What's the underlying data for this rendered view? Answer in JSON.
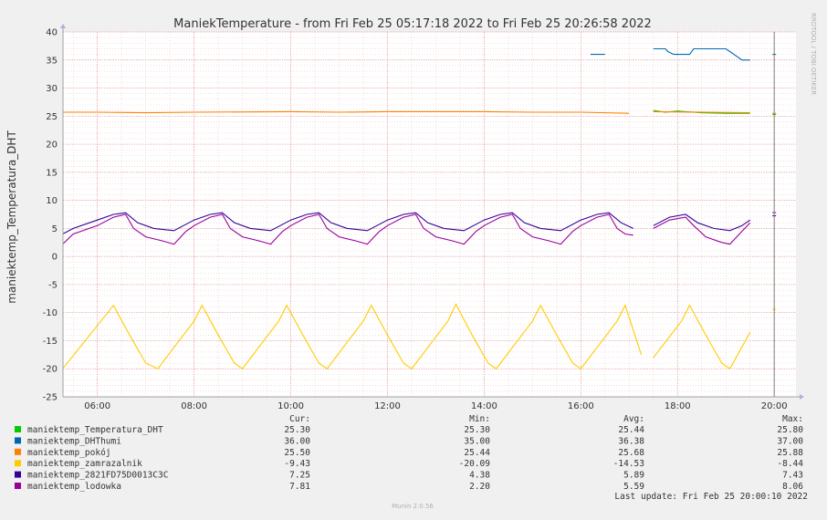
{
  "chart_data": {
    "type": "line",
    "title": "ManiekTemperature - from Fri Feb 25 05:17:18 2022 to Fri Feb 25 20:26:58 2022",
    "ylabel": "maniektemp_Temperatura_DHT",
    "xlabel": "",
    "ylim": [
      -25,
      40
    ],
    "xlim": [
      "05:17",
      "20:27"
    ],
    "y_ticks": [
      "40",
      "35",
      "30",
      "25",
      "20",
      "15",
      "10",
      "5",
      "0",
      "-5",
      "-10",
      "-15",
      "-20",
      "-25"
    ],
    "x_ticks": [
      "06:00",
      "08:00",
      "10:00",
      "12:00",
      "14:00",
      "16:00",
      "18:00",
      "20:00"
    ],
    "grid": true,
    "legend_position": "bottom",
    "series": [
      {
        "name": "maniektemp_Temperatura_DHT",
        "color": "#00cc00",
        "segments": [
          [
            [
              "17:30",
              26.0
            ],
            [
              "17:45",
              25.7
            ],
            [
              "18:00",
              25.9
            ],
            [
              "18:10",
              25.8
            ],
            [
              "18:30",
              25.6
            ],
            [
              "19:00",
              25.5
            ],
            [
              "19:30",
              25.5
            ]
          ],
          [
            [
              "20:00",
              25.3
            ]
          ]
        ]
      },
      {
        "name": "maniektemp_DHThumi",
        "color": "#0066b3",
        "segments": [
          [
            [
              "16:12",
              36.0
            ],
            [
              "16:30",
              36.0
            ]
          ],
          [
            [
              "17:30",
              37.0
            ],
            [
              "17:45",
              37.0
            ],
            [
              "17:48",
              36.5
            ],
            [
              "17:55",
              36.0
            ],
            [
              "18:15",
              36.0
            ],
            [
              "18:20",
              37.0
            ],
            [
              "19:00",
              37.0
            ],
            [
              "19:05",
              36.5
            ],
            [
              "19:15",
              35.5
            ],
            [
              "19:20",
              35.0
            ],
            [
              "19:30",
              35.0
            ]
          ],
          [
            [
              "20:00",
              36.0
            ]
          ]
        ]
      },
      {
        "name": "maniektemp_pokój",
        "color": "#ff8000",
        "segments": [
          [
            [
              "05:17",
              25.7
            ],
            [
              "06:00",
              25.7
            ],
            [
              "07:00",
              25.6
            ],
            [
              "08:00",
              25.7
            ],
            [
              "10:00",
              25.8
            ],
            [
              "11:00",
              25.7
            ],
            [
              "12:00",
              25.8
            ],
            [
              "14:00",
              25.8
            ],
            [
              "15:00",
              25.7
            ],
            [
              "16:00",
              25.7
            ],
            [
              "17:00",
              25.5
            ]
          ],
          [
            [
              "17:30",
              25.8
            ],
            [
              "19:30",
              25.6
            ]
          ],
          [
            [
              "20:00",
              25.5
            ]
          ]
        ]
      },
      {
        "name": "maniektemp_zamrazalnik",
        "color": "#ffcc00",
        "segments": [
          [
            [
              "05:17",
              -20.0
            ],
            [
              "06:10",
              -10.5
            ],
            [
              "06:20",
              -8.7
            ],
            [
              "06:40",
              -14.0
            ],
            [
              "07:00",
              -19.0
            ],
            [
              "07:15",
              -20.0
            ],
            [
              "08:00",
              -11.5
            ],
            [
              "08:10",
              -8.7
            ],
            [
              "08:30",
              -14.0
            ],
            [
              "08:50",
              -19.0
            ],
            [
              "09:00",
              -20.0
            ],
            [
              "09:45",
              -11.5
            ],
            [
              "09:55",
              -8.7
            ],
            [
              "10:15",
              -14.0
            ],
            [
              "10:35",
              -19.0
            ],
            [
              "10:45",
              -20.0
            ],
            [
              "11:30",
              -11.5
            ],
            [
              "11:40",
              -8.7
            ],
            [
              "12:00",
              -14.0
            ],
            [
              "12:20",
              -19.0
            ],
            [
              "12:30",
              -20.0
            ],
            [
              "13:15",
              -11.5
            ],
            [
              "13:25",
              -8.5
            ],
            [
              "13:45",
              -14.0
            ],
            [
              "14:05",
              -19.0
            ],
            [
              "14:15",
              -20.0
            ],
            [
              "15:00",
              -11.5
            ],
            [
              "15:10",
              -8.7
            ],
            [
              "15:30",
              -14.0
            ],
            [
              "15:50",
              -19.0
            ],
            [
              "16:00",
              -20.0
            ],
            [
              "16:45",
              -11.5
            ],
            [
              "16:55",
              -8.7
            ],
            [
              "17:15",
              -17.5
            ]
          ],
          [
            [
              "17:30",
              -18.0
            ],
            [
              "18:05",
              -11.5
            ],
            [
              "18:15",
              -8.7
            ],
            [
              "18:35",
              -14.0
            ],
            [
              "18:55",
              -19.0
            ],
            [
              "19:05",
              -20.0
            ],
            [
              "19:30",
              -13.5
            ]
          ],
          [
            [
              "20:00",
              -9.4
            ]
          ]
        ]
      },
      {
        "name": "maniektemp_2821FD75D0013C3C",
        "color": "#330099",
        "segments": [
          [
            [
              "05:17",
              4.0
            ],
            [
              "05:30",
              5.0
            ],
            [
              "06:00",
              6.5
            ],
            [
              "06:20",
              7.5
            ],
            [
              "06:35",
              7.8
            ],
            [
              "06:50",
              6.0
            ],
            [
              "07:10",
              5.0
            ],
            [
              "07:35",
              4.6
            ],
            [
              "08:00",
              6.5
            ],
            [
              "08:20",
              7.5
            ],
            [
              "08:35",
              7.8
            ],
            [
              "08:50",
              6.0
            ],
            [
              "09:10",
              5.0
            ],
            [
              "09:35",
              4.6
            ],
            [
              "10:00",
              6.5
            ],
            [
              "10:20",
              7.5
            ],
            [
              "10:35",
              7.8
            ],
            [
              "10:50",
              6.0
            ],
            [
              "11:10",
              5.0
            ],
            [
              "11:35",
              4.6
            ],
            [
              "12:00",
              6.5
            ],
            [
              "12:20",
              7.5
            ],
            [
              "12:35",
              7.8
            ],
            [
              "12:50",
              6.0
            ],
            [
              "13:10",
              5.0
            ],
            [
              "13:35",
              4.6
            ],
            [
              "14:00",
              6.5
            ],
            [
              "14:20",
              7.5
            ],
            [
              "14:35",
              7.8
            ],
            [
              "14:50",
              6.0
            ],
            [
              "15:10",
              5.0
            ],
            [
              "15:35",
              4.6
            ],
            [
              "16:00",
              6.5
            ],
            [
              "16:20",
              7.5
            ],
            [
              "16:35",
              7.8
            ],
            [
              "16:50",
              6.0
            ],
            [
              "17:05",
              5.0
            ]
          ],
          [
            [
              "17:30",
              5.5
            ],
            [
              "17:50",
              7.0
            ],
            [
              "18:10",
              7.5
            ],
            [
              "18:25",
              6.0
            ],
            [
              "18:45",
              5.0
            ],
            [
              "19:05",
              4.6
            ],
            [
              "19:20",
              5.5
            ],
            [
              "19:30",
              6.5
            ]
          ],
          [
            [
              "20:00",
              7.25
            ]
          ]
        ]
      },
      {
        "name": "maniektemp_lodowka",
        "color": "#990099",
        "segments": [
          [
            [
              "05:17",
              2.2
            ],
            [
              "05:30",
              4.0
            ],
            [
              "06:00",
              5.5
            ],
            [
              "06:20",
              7.0
            ],
            [
              "06:35",
              7.5
            ],
            [
              "06:45",
              5.0
            ],
            [
              "07:00",
              3.5
            ],
            [
              "07:20",
              2.8
            ],
            [
              "07:35",
              2.2
            ],
            [
              "07:50",
              4.5
            ],
            [
              "08:00",
              5.5
            ],
            [
              "08:20",
              7.0
            ],
            [
              "08:35",
              7.5
            ],
            [
              "08:45",
              5.0
            ],
            [
              "09:00",
              3.5
            ],
            [
              "09:20",
              2.8
            ],
            [
              "09:35",
              2.2
            ],
            [
              "09:50",
              4.5
            ],
            [
              "10:00",
              5.5
            ],
            [
              "10:20",
              7.0
            ],
            [
              "10:35",
              7.5
            ],
            [
              "10:45",
              5.0
            ],
            [
              "11:00",
              3.5
            ],
            [
              "11:20",
              2.8
            ],
            [
              "11:35",
              2.2
            ],
            [
              "11:50",
              4.5
            ],
            [
              "12:00",
              5.5
            ],
            [
              "12:20",
              7.0
            ],
            [
              "12:35",
              7.5
            ],
            [
              "12:45",
              5.0
            ],
            [
              "13:00",
              3.5
            ],
            [
              "13:20",
              2.8
            ],
            [
              "13:35",
              2.2
            ],
            [
              "13:50",
              4.5
            ],
            [
              "14:00",
              5.5
            ],
            [
              "14:20",
              7.0
            ],
            [
              "14:35",
              7.5
            ],
            [
              "14:45",
              5.0
            ],
            [
              "15:00",
              3.5
            ],
            [
              "15:20",
              2.8
            ],
            [
              "15:35",
              2.2
            ],
            [
              "15:50",
              4.5
            ],
            [
              "16:00",
              5.5
            ],
            [
              "16:20",
              7.0
            ],
            [
              "16:35",
              7.5
            ],
            [
              "16:45",
              5.0
            ],
            [
              "16:55",
              4.0
            ],
            [
              "17:05",
              3.8
            ]
          ],
          [
            [
              "17:30",
              5.0
            ],
            [
              "17:50",
              6.5
            ],
            [
              "18:10",
              7.0
            ],
            [
              "18:20",
              5.5
            ],
            [
              "18:35",
              3.5
            ],
            [
              "18:55",
              2.5
            ],
            [
              "19:05",
              2.2
            ],
            [
              "19:20",
              4.5
            ],
            [
              "19:30",
              6.0
            ]
          ],
          [
            [
              "20:00",
              7.81
            ]
          ]
        ]
      }
    ],
    "legend_columns": [
      "Cur:",
      "Min:",
      "Avg:",
      "Max:"
    ],
    "legend_rows": [
      {
        "name": "maniektemp_Temperatura_DHT",
        "color": "#00cc00",
        "cur": "25.30",
        "min": "25.30",
        "avg": "25.44",
        "max": "25.80"
      },
      {
        "name": "maniektemp_DHThumi",
        "color": "#0066b3",
        "cur": "36.00",
        "min": "35.00",
        "avg": "36.38",
        "max": "37.00"
      },
      {
        "name": "maniektemp_pokój",
        "color": "#ff8000",
        "cur": "25.50",
        "min": "25.44",
        "avg": "25.68",
        "max": "25.88"
      },
      {
        "name": "maniektemp_zamrazalnik",
        "color": "#ffcc00",
        "cur": "-9.43",
        "min": "-20.09",
        "avg": "-14.53",
        "max": "-8.44"
      },
      {
        "name": "maniektemp_2821FD75D0013C3C",
        "color": "#330099",
        "cur": "7.25",
        "min": "4.38",
        "avg": "5.89",
        "max": "7.43"
      },
      {
        "name": "maniektemp_lodowka",
        "color": "#990099",
        "cur": "7.81",
        "min": "2.20",
        "avg": "5.59",
        "max": "8.06"
      }
    ],
    "last_update": "Last update: Fri Feb 25 20:00:10 2022",
    "footer": "Munin 2.0.56",
    "watermark": "RRDTOOL / TOBI OETIKER"
  }
}
